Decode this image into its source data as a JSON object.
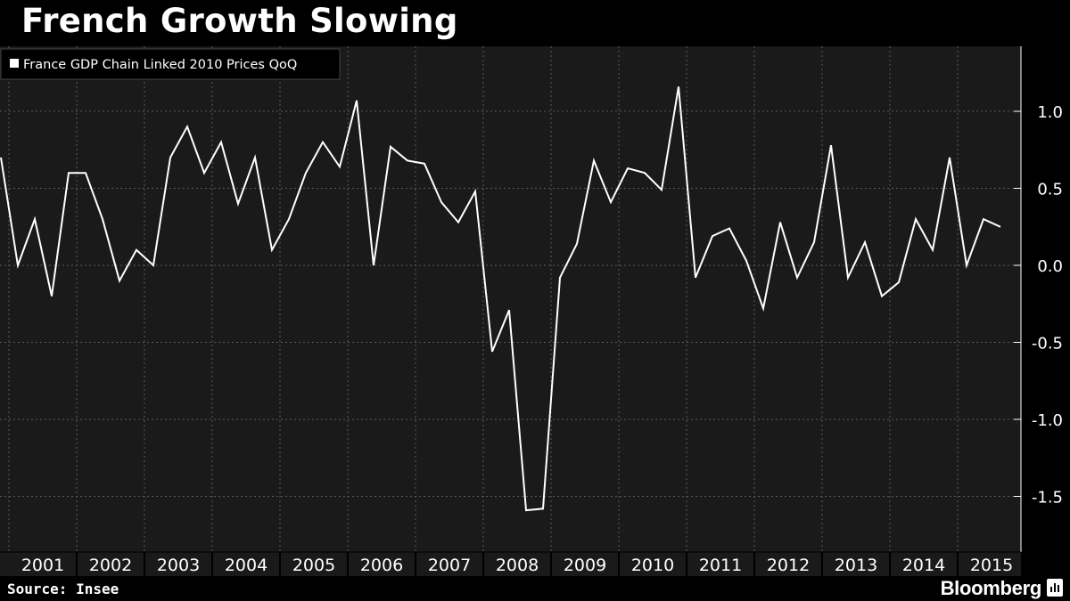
{
  "chart_data": {
    "type": "line",
    "title": "French Growth Slowing",
    "legend": {
      "entries": [
        "France GDP Chain Linked 2010 Prices QoQ"
      ],
      "placement": "top-left"
    },
    "xlabel": "",
    "ylabel": "",
    "x_start": "2000-Q4",
    "x_end": "2015-Q3",
    "year_labels": [
      "2001",
      "2002",
      "2003",
      "2004",
      "2005",
      "2006",
      "2007",
      "2008",
      "2009",
      "2010",
      "2011",
      "2012",
      "2013",
      "2014",
      "2015"
    ],
    "y_ticks": [
      1.0,
      0.5,
      0.0,
      -0.5,
      -1.0,
      -1.5
    ],
    "y_tick_labels": [
      "1.0",
      "0.5",
      "0.0",
      "-0.5",
      "-1.0",
      "-1.5"
    ],
    "ylim": [
      -1.85,
      1.4
    ],
    "y_axis_side": "right",
    "grid": true,
    "series": [
      {
        "name": "France GDP Chain Linked 2010 Prices QoQ",
        "color": "#ffffff",
        "x": [
          "2000-Q4",
          "2001-Q1",
          "2001-Q2",
          "2001-Q3",
          "2001-Q4",
          "2002-Q1",
          "2002-Q2",
          "2002-Q3",
          "2002-Q4",
          "2003-Q1",
          "2003-Q2",
          "2003-Q3",
          "2003-Q4",
          "2004-Q1",
          "2004-Q2",
          "2004-Q3",
          "2004-Q4",
          "2005-Q1",
          "2005-Q2",
          "2005-Q3",
          "2005-Q4",
          "2006-Q1",
          "2006-Q2",
          "2006-Q3",
          "2006-Q4",
          "2007-Q1",
          "2007-Q2",
          "2007-Q3",
          "2007-Q4",
          "2008-Q1",
          "2008-Q2",
          "2008-Q3",
          "2008-Q4",
          "2009-Q1",
          "2009-Q2",
          "2009-Q3",
          "2009-Q4",
          "2010-Q1",
          "2010-Q2",
          "2010-Q3",
          "2010-Q4",
          "2011-Q1",
          "2011-Q2",
          "2011-Q3",
          "2011-Q4",
          "2012-Q1",
          "2012-Q2",
          "2012-Q3",
          "2012-Q4",
          "2013-Q1",
          "2013-Q2",
          "2013-Q3",
          "2013-Q4",
          "2014-Q1",
          "2014-Q2",
          "2014-Q3",
          "2014-Q4",
          "2015-Q1",
          "2015-Q2",
          "2015-Q3"
        ],
        "values": [
          0.7,
          0.0,
          0.3,
          -0.2,
          0.6,
          0.6,
          0.3,
          -0.1,
          0.1,
          0.0,
          0.7,
          0.9,
          0.6,
          0.8,
          0.4,
          0.7,
          0.1,
          0.3,
          0.6,
          0.8,
          0.64,
          1.07,
          0.0,
          0.77,
          0.68,
          0.66,
          0.41,
          0.28,
          0.48,
          -0.56,
          -0.29,
          -1.59,
          -1.58,
          -0.08,
          0.14,
          0.68,
          0.41,
          0.63,
          0.6,
          0.49,
          1.16,
          -0.08,
          0.19,
          0.24,
          0.03,
          -0.28,
          0.28,
          -0.08,
          0.15,
          0.78,
          -0.08,
          0.15,
          -0.2,
          -0.11,
          0.3,
          0.1,
          0.7,
          0.0,
          0.3,
          0.25
        ]
      }
    ]
  },
  "footer": {
    "source": "Source: Insee",
    "brand": "Bloomberg"
  },
  "colors": {
    "background": "#000000",
    "plot_background": "#1a1a1a",
    "line": "#ffffff",
    "grid": "#5a5a5a"
  }
}
